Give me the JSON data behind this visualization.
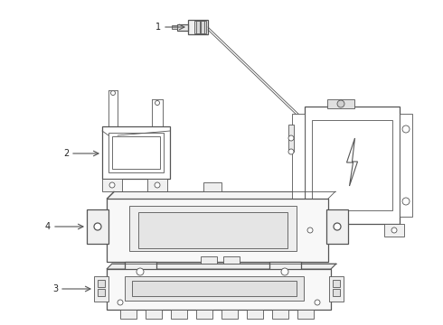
{
  "bg_color": "#ffffff",
  "line_color": "#555555",
  "label_color": "#222222",
  "figsize": [
    4.9,
    3.6
  ],
  "dpi": 100
}
